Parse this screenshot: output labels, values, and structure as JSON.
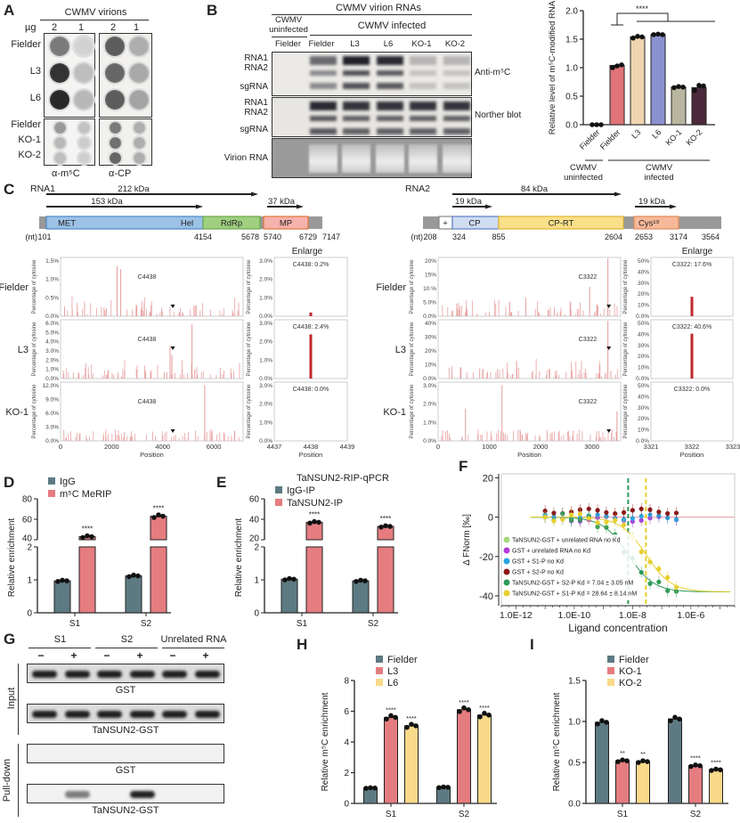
{
  "panel_labels": [
    "A",
    "B",
    "C",
    "D",
    "E",
    "F",
    "G",
    "H",
    "I"
  ],
  "panelA": {
    "header": "CWMV virions",
    "ug_label": "µg",
    "doses": [
      "2",
      "1",
      "2",
      "1"
    ],
    "rows_top": [
      "Fielder",
      "L3",
      "L6"
    ],
    "rows_bottom": [
      "Fielder",
      "KO-1",
      "KO-2"
    ],
    "top_intensity_m5C": [
      [
        0.55,
        0.12
      ],
      [
        0.9,
        0.22
      ],
      [
        0.95,
        0.25
      ]
    ],
    "top_intensity_CP": [
      [
        0.7,
        0.3
      ],
      [
        0.65,
        0.32
      ],
      [
        0.7,
        0.35
      ]
    ],
    "bottom_intensity_m5C": [
      [
        0.4,
        0.2
      ],
      [
        0.25,
        0.15
      ],
      [
        0.22,
        0.14
      ]
    ],
    "bottom_intensity_CP": [
      [
        0.55,
        0.3
      ],
      [
        0.6,
        0.3
      ],
      [
        0.65,
        0.3
      ]
    ],
    "captions": [
      "α-m⁵C",
      "α-CP"
    ]
  },
  "panelB_blot": {
    "header": "CWMV virion RNAs",
    "group_uninfected": "CWMV uninfected",
    "group_infected": "CWMV infected",
    "lanes": [
      "Fielder",
      "Fielder",
      "L3",
      "L6",
      "KO-1",
      "KO-2"
    ],
    "row_labels_1": [
      "RNA1",
      "RNA2",
      "sgRNA"
    ],
    "row_labels_2": [
      "RNA1",
      "RNA2",
      "sgRNA"
    ],
    "row_label_3": "Virion RNA",
    "blot_labels": [
      "Anti-m⁵C",
      "Norther blot"
    ],
    "m5C_intensity": [
      0.0,
      0.6,
      0.95,
      0.9,
      0.25,
      0.25
    ],
    "northern_intensity": [
      0.0,
      0.9,
      0.85,
      0.85,
      0.85,
      0.85
    ]
  },
  "chart_data": [
    {
      "id": "B",
      "type": "bar",
      "title": "",
      "ylabel": "Relative level of m⁵C-modified RNA",
      "ylim": [
        0,
        2.0
      ],
      "yticks": [
        "0.0",
        "0.5",
        "1.0",
        "1.5",
        "2.0"
      ],
      "categories": [
        "Fielder",
        "Fielder",
        "L3",
        "L6",
        "KO-1",
        "KO-2"
      ],
      "values": [
        0.0,
        1.04,
        1.54,
        1.58,
        0.66,
        0.65
      ],
      "points": [
        [
          0,
          0,
          0
        ],
        [
          1.0,
          1.03,
          1.05
        ],
        [
          1.52,
          1.55,
          1.54
        ],
        [
          1.58,
          1.59,
          1.58
        ],
        [
          0.65,
          0.67,
          0.66
        ],
        [
          0.6,
          0.69,
          0.68
        ]
      ],
      "colors": [
        "#555555",
        "#e07478",
        "#efd5b0",
        "#8b91cf",
        "#b9b6a0",
        "#4c2a3b"
      ],
      "group_labels": [
        "CWMV uninfected",
        "CWMV infected"
      ],
      "significance": "****"
    },
    {
      "id": "D",
      "type": "bar",
      "ylabel": "Relative enrichment",
      "categories": [
        "S1",
        "S2"
      ],
      "series": [
        {
          "name": "IgG",
          "values": [
            0.97,
            1.12
          ],
          "color": "#5d7a82"
        },
        {
          "name": "m⁵C MeRIP",
          "values": [
            43,
            63
          ],
          "color": "#e57c80"
        }
      ],
      "yticks_low": [
        "0",
        "1",
        "2"
      ],
      "yticks_high": [
        "40",
        "60",
        "80"
      ],
      "significance": [
        "****",
        "****"
      ]
    },
    {
      "id": "E",
      "type": "bar",
      "title": "TaNSUN2-RIP-qPCR",
      "ylabel": "Relative enrichment",
      "categories": [
        "S1",
        "S2"
      ],
      "series": [
        {
          "name": "IgG-IP",
          "values": [
            1.02,
            0.97
          ],
          "color": "#5d7a82"
        },
        {
          "name": "TaNSUN2-IP",
          "values": [
            37,
            33
          ],
          "color": "#e57c80"
        }
      ],
      "yticks_low": [
        "0",
        "1",
        "2"
      ],
      "yticks_high": [
        "20",
        "40",
        "60"
      ],
      "significance": [
        "****",
        "****"
      ]
    },
    {
      "id": "F",
      "type": "scatter",
      "xlabel": "Ligand concentration",
      "ylabel": "Δ FNorm [‰]",
      "xticks": [
        "1.0E-12",
        "1.0E-10",
        "1.0E-8",
        "1.0E-6"
      ],
      "yticks": [
        "20",
        "0",
        "-20",
        "-40"
      ],
      "ylim": [
        -45,
        22
      ],
      "series": [
        {
          "name": "TaNSUN2-GST + unrelated RNA no Kd",
          "color": "#a6d87a"
        },
        {
          "name": "GST + unrelated RNA no Kd",
          "color": "#b23ad6"
        },
        {
          "name": "GST + S1-P no Kd",
          "color": "#2aa4e0"
        },
        {
          "name": "GST + S2-P no Kd",
          "color": "#8b1a1a"
        },
        {
          "name": "TaNSUN2-GST + S2-P Kd = 7.04 ± 3.05 nM",
          "color": "#2e9a5a",
          "kd": 7.04e-09
        },
        {
          "name": "TaNSUN2-GST + S1-P Kd = 28.64 ± 8.14 nM",
          "color": "#e8cf2e",
          "kd": 2.864e-08
        }
      ]
    },
    {
      "id": "H",
      "type": "bar",
      "ylabel": "Relative m⁵C enrichment",
      "ylim": [
        0,
        8
      ],
      "yticks": [
        "0",
        "2",
        "4",
        "6",
        "8"
      ],
      "categories": [
        "S1",
        "S2"
      ],
      "series": [
        {
          "name": "Fielder",
          "values": [
            1.0,
            1.05
          ],
          "color": "#5d7a82"
        },
        {
          "name": "L3",
          "values": [
            5.6,
            6.1
          ],
          "color": "#e57c80"
        },
        {
          "name": "L6",
          "values": [
            5.05,
            5.75
          ],
          "color": "#f9d98a"
        }
      ],
      "significance": [
        "",
        "****",
        "****"
      ]
    },
    {
      "id": "I",
      "type": "bar",
      "ylabel": "Relative m⁵C enrichment",
      "ylim": [
        0,
        1.5
      ],
      "yticks": [
        "0.0",
        "0.5",
        "1.0",
        "1.5"
      ],
      "categories": [
        "S1",
        "S2"
      ],
      "series": [
        {
          "name": "Fielder",
          "values": [
            0.99,
            1.03
          ],
          "color": "#5d7a82"
        },
        {
          "name": "KO-1",
          "values": [
            0.52,
            0.46
          ],
          "color": "#e57c80"
        },
        {
          "name": "KO-2",
          "values": [
            0.51,
            0.41
          ],
          "color": "#f9d98a"
        }
      ],
      "significance_S1": [
        "",
        "**",
        "**"
      ],
      "significance_S2": [
        "",
        "****",
        "****"
      ]
    }
  ],
  "panelC": {
    "rna1": {
      "title": "RNA1",
      "arrows": [
        "212 kDa",
        "153 kDa",
        "37 kDa"
      ],
      "domains": [
        "MET",
        "Hel",
        "RdRp",
        "MP"
      ],
      "nt_label": "(nt)",
      "positions": [
        "101",
        "4154",
        "5678",
        "5740",
        "6729",
        "7147"
      ],
      "enlarge": "Enlarge",
      "site": "C4438",
      "rows": [
        {
          "name": "Fielder",
          "yticks": [
            "0.0%",
            "0.5%",
            "1.0%",
            "1.5%"
          ],
          "enl": "C4438: 0.2%",
          "enl_val": 0.2,
          "enl_max": 3.0
        },
        {
          "name": "L3",
          "yticks": [
            "0.0%",
            "1.0%",
            "2.0%",
            "3.0%",
            "4.0%",
            "5.0%",
            "6.0%"
          ],
          "enl": "C4438: 2.4%",
          "enl_val": 2.4,
          "enl_max": 3.0
        },
        {
          "name": "KO-1",
          "yticks": [
            "0.0%",
            "3.0%",
            "6.0%",
            "9.0%",
            "12.0%"
          ],
          "enl": "C4438: 0.0%",
          "enl_val": 0.0,
          "enl_max": 3.0
        }
      ],
      "enl_yticks": [
        "0.0%",
        "1.0%",
        "2.0%",
        "3.0%"
      ],
      "xticks": [
        "0",
        "2000",
        "4000",
        "6000"
      ],
      "enl_xticks": [
        "4437",
        "4438",
        "4439"
      ],
      "xlabel": "Position",
      "ylabel": "Percentage of cytosine"
    },
    "rna2": {
      "title": "RNA2",
      "arrows": [
        "84 kDa",
        "19 kDa",
        "19 kDa"
      ],
      "domains": [
        "+",
        "CP",
        "CP-RT",
        "Cys¹⁹"
      ],
      "nt_label": "(nt)",
      "positions": [
        "208",
        "324",
        "855",
        "2604",
        "2653",
        "3174",
        "3564"
      ],
      "enlarge": "Enlarge",
      "site": "C3322",
      "rows": [
        {
          "name": "Fielder",
          "yticks": [
            "0.0%",
            "5.0%",
            "10.%",
            "15%",
            "20%"
          ],
          "enl": "C3322: 17.6%",
          "enl_val": 17.6,
          "enl_max": 50
        },
        {
          "name": "L3",
          "yticks": [
            "0.0%",
            "10%",
            "20%",
            "30%",
            "40%"
          ],
          "enl": "C3322: 40.6%",
          "enl_val": 40.6,
          "enl_max": 50
        },
        {
          "name": "KO-1",
          "yticks": [
            "0.0%",
            "1.0%",
            "2.0%",
            "3.0%"
          ],
          "enl": "C3322: 0.0%",
          "enl_val": 0.0,
          "enl_max": 50
        }
      ],
      "enl_yticks": [
        "0.0%",
        "10%",
        "20%",
        "30%",
        "40%",
        "50%"
      ],
      "xticks": [
        "0",
        "1000",
        "2000",
        "3000"
      ],
      "enl_xticks": [
        "3321",
        "3322",
        "3323"
      ],
      "xlabel": "Position",
      "ylabel": "Percentage of cytosine"
    }
  },
  "panelG": {
    "groups": [
      "S1",
      "S2",
      "Unrelated RNA"
    ],
    "signs": [
      "−",
      "+",
      "−",
      "+",
      "−",
      "+"
    ],
    "section_input": "Input",
    "section_pulldown": "Pull-down",
    "blot_labels": [
      "GST",
      "TaNSUN2-GST",
      "GST",
      "TaNSUN2-GST"
    ],
    "pulldown_intensity": [
      0,
      0.5,
      0,
      0.9,
      0,
      0
    ]
  }
}
